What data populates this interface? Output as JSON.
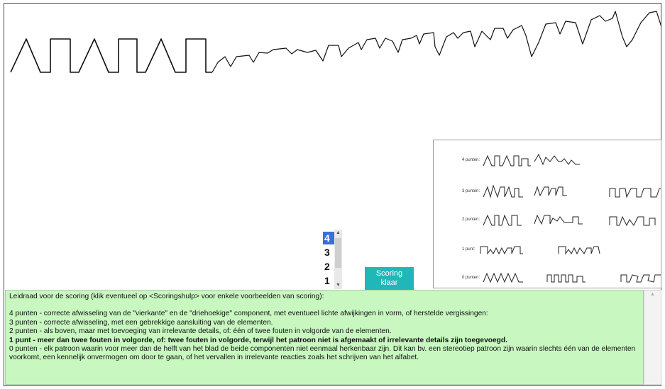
{
  "drawing": {
    "icon": "handwritten-zigzag-pattern"
  },
  "examples_panel": {
    "rows": [
      {
        "label": "4 punten:"
      },
      {
        "label": "3 punten:"
      },
      {
        "label": "2 punten:"
      },
      {
        "label": "1 punt:"
      },
      {
        "label": "0 punten:"
      }
    ]
  },
  "score_select": {
    "options": [
      "4",
      "3",
      "2",
      "1"
    ],
    "selected": "4",
    "selected_color": "#3a6fd8"
  },
  "ready_button": {
    "line1": "Scoring",
    "line2": "klaar",
    "color": "#1fb7b7"
  },
  "guide": {
    "intro": "Leidraad voor de scoring (klik eventueel op <Scoringshulp> voor enkele voorbeelden van scoring):",
    "lines": [
      "4 punten - correcte afwisseling van de \"vierkante\" en de \"driehoekige\" component, met eventueel lichte afwijkingen in vorm, of herstelde vergissingen:",
      "3 punten - correcte afwisseling, met een gebrekkige aansluiting van de elementen.",
      "2 punten - als boven, maar met toevoeging van irrelevante details, of: één of twee fouten in volgorde van de elementen.",
      "1 punt - meer dan twee fouten in volgorde, of: twee fouten in volgorde, terwijl het patroon niet is afgemaakt of irrelevante details zijn toegevoegd.",
      "0 punten - elk patroon waarin voor meer dan de helft van het blad de beide componenten niet eenmaal herkenbaar zijn. Dit kan bv. een stereotiep patroon zijn waarin slechts één van de elementen voorkomt, een kennelijk onvermogen om door te gaan, of het vervallen in irrelevante reacties zoals het schrijven van het alfabet."
    ],
    "background": "#c8f7c0"
  }
}
